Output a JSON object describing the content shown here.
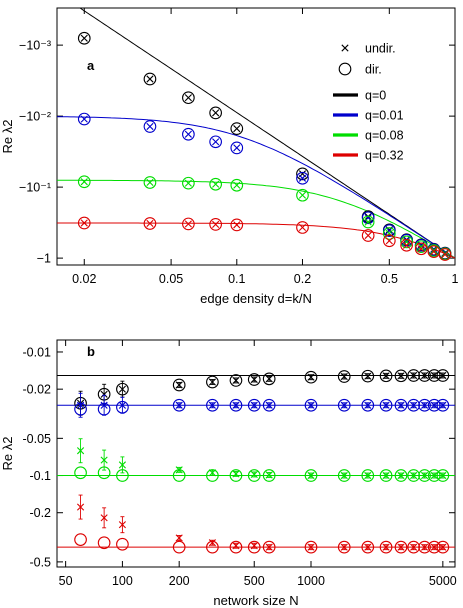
{
  "chart_data": [
    {
      "type": "scatter",
      "panel_label": "a",
      "xlabel": "edge density d=k/N",
      "ylabel": "Re λ2",
      "xscale": "log",
      "yscale": "log (magnitude, negative values)",
      "xlim": [
        0.015,
        1.0
      ],
      "ylim": [
        -0.0003,
        -1.25
      ],
      "xticks": [
        0.02,
        0.05,
        0.1,
        0.2,
        0.5,
        1
      ],
      "xtick_labels": [
        "0.02",
        "0.05",
        "0.1",
        "0.2",
        "0.5",
        "1"
      ],
      "yticks": [
        -0.001,
        -0.01,
        -0.1,
        -1
      ],
      "ytick_labels": [
        "−10⁻³",
        "−10⁻²",
        "−10⁻¹",
        "−1"
      ],
      "legend": {
        "position": "top-right",
        "markers": [
          {
            "label": "undir.",
            "marker": "x"
          },
          {
            "label": "dir.",
            "marker": "circle"
          }
        ],
        "lines": [
          {
            "label": "q=0",
            "color": "#000000"
          },
          {
            "label": "q=0.01",
            "color": "#0000cc"
          },
          {
            "label": "q=0.08",
            "color": "#00dd00"
          },
          {
            "label": "q=0.32",
            "color": "#dd0000"
          }
        ]
      },
      "x": [
        0.02,
        0.04,
        0.06,
        0.08,
        0.1,
        0.2,
        0.4,
        0.5,
        0.6,
        0.7,
        0.8,
        0.9
      ],
      "series": [
        {
          "name": "q=0",
          "color": "#000000",
          "theory_x": [
            0.015,
            0.9
          ],
          "theory_y": [
            -0.0004,
            -0.9
          ],
          "undirected": [
            -0.0008,
            -0.003,
            -0.0055,
            -0.009,
            -0.015,
            -0.065,
            -0.26,
            -0.4,
            -0.55,
            -0.65,
            -0.75,
            -0.85
          ],
          "directed": [
            -0.0008,
            -0.003,
            -0.0055,
            -0.009,
            -0.015,
            -0.065,
            -0.26,
            -0.4,
            -0.55,
            -0.65,
            -0.75,
            -0.85
          ]
        },
        {
          "name": "q=0.01",
          "color": "#0000cc",
          "undirected": [
            -0.011,
            -0.014,
            -0.018,
            -0.023,
            -0.028,
            -0.075,
            -0.27,
            -0.41,
            -0.56,
            -0.66,
            -0.76,
            -0.86
          ],
          "directed": [
            -0.011,
            -0.014,
            -0.018,
            -0.023,
            -0.028,
            -0.075,
            -0.27,
            -0.41,
            -0.56,
            -0.66,
            -0.76,
            -0.86
          ]
        },
        {
          "name": "q=0.08",
          "color": "#00dd00",
          "undirected": [
            -0.084,
            -0.086,
            -0.088,
            -0.091,
            -0.094,
            -0.13,
            -0.31,
            -0.45,
            -0.59,
            -0.69,
            -0.78,
            -0.87
          ],
          "directed": [
            -0.084,
            -0.086,
            -0.088,
            -0.091,
            -0.094,
            -0.13,
            -0.31,
            -0.45,
            -0.59,
            -0.69,
            -0.78,
            -0.87
          ]
        },
        {
          "name": "q=0.32",
          "color": "#dd0000",
          "undirected": [
            -0.32,
            -0.325,
            -0.33,
            -0.335,
            -0.34,
            -0.37,
            -0.48,
            -0.57,
            -0.66,
            -0.74,
            -0.81,
            -0.89
          ],
          "directed": [
            -0.32,
            -0.325,
            -0.33,
            -0.335,
            -0.34,
            -0.37,
            -0.48,
            -0.57,
            -0.66,
            -0.74,
            -0.81,
            -0.89
          ]
        }
      ]
    },
    {
      "type": "scatter",
      "panel_label": "b",
      "xlabel": "network size N",
      "ylabel": "Re λ2",
      "xscale": "log",
      "yscale": "log (magnitude, negative values)",
      "xlim": [
        45,
        5800
      ],
      "ylim": [
        -0.008,
        -0.55
      ],
      "xticks": [
        50,
        100,
        200,
        500,
        1000,
        5000
      ],
      "xtick_labels": [
        "50",
        "100",
        "200",
        "500",
        "1000",
        "5000"
      ],
      "yticks": [
        -0.01,
        -0.02,
        -0.05,
        -0.1,
        -0.2,
        -0.5
      ],
      "ytick_labels": [
        "-0.01",
        "-0.02",
        "-0.05",
        "-0.1",
        "-0.2",
        "-0.5"
      ],
      "x": [
        60,
        80,
        100,
        200,
        300,
        400,
        500,
        600,
        1000,
        1500,
        2000,
        2500,
        3000,
        3500,
        4000,
        4500,
        5000
      ],
      "series": [
        {
          "name": "q=0",
          "color": "#000000",
          "level": -0.0155,
          "undirected": [
            -0.026,
            -0.022,
            -0.02,
            -0.0185,
            -0.0175,
            -0.017,
            -0.0167,
            -0.0165,
            -0.016,
            -0.0158,
            -0.0157,
            -0.0156,
            -0.0156,
            -0.0155,
            -0.0155,
            -0.0155,
            -0.0155
          ],
          "directed": [
            -0.026,
            -0.022,
            -0.02,
            -0.0185,
            -0.0175,
            -0.017,
            -0.0167,
            -0.0165,
            -0.016,
            -0.0158,
            -0.0157,
            -0.0156,
            -0.0156,
            -0.0155,
            -0.0155,
            -0.0155,
            -0.0155
          ]
        },
        {
          "name": "q=0.01",
          "color": "#0000cc",
          "level": -0.027,
          "undirected": [
            -0.027,
            -0.027,
            -0.027,
            -0.027,
            -0.027,
            -0.027,
            -0.027,
            -0.027,
            -0.027,
            -0.027,
            -0.027,
            -0.027,
            -0.027,
            -0.027,
            -0.027,
            -0.027,
            -0.027
          ],
          "directed": [
            -0.029,
            -0.029,
            -0.028,
            -0.027,
            -0.027,
            -0.027,
            -0.027,
            -0.027,
            -0.027,
            -0.027,
            -0.027,
            -0.027,
            -0.027,
            -0.027,
            -0.027,
            -0.027,
            -0.027
          ]
        },
        {
          "name": "q=0.08",
          "color": "#00dd00",
          "level": -0.1,
          "undirected": [
            -0.063,
            -0.075,
            -0.082,
            -0.09,
            -0.095,
            -0.097,
            -0.098,
            -0.099,
            -0.1,
            -0.1,
            -0.1,
            -0.1,
            -0.1,
            -0.1,
            -0.1,
            -0.1,
            -0.1
          ],
          "directed": [
            -0.095,
            -0.095,
            -0.1,
            -0.1,
            -0.1,
            -0.1,
            -0.1,
            -0.1,
            -0.1,
            -0.1,
            -0.1,
            -0.1,
            -0.1,
            -0.1,
            -0.1,
            -0.1,
            -0.1
          ]
        },
        {
          "name": "q=0.32",
          "color": "#dd0000",
          "level": -0.38,
          "undirected": [
            -0.18,
            -0.22,
            -0.25,
            -0.32,
            -0.35,
            -0.37,
            -0.37,
            -0.38,
            -0.38,
            -0.38,
            -0.38,
            -0.38,
            -0.38,
            -0.38,
            -0.38,
            -0.38,
            -0.38
          ],
          "directed": [
            -0.33,
            -0.35,
            -0.36,
            -0.38,
            -0.38,
            -0.38,
            -0.38,
            -0.38,
            -0.38,
            -0.38,
            -0.38,
            -0.38,
            -0.38,
            -0.38,
            -0.38,
            -0.38,
            -0.38
          ]
        }
      ]
    }
  ]
}
